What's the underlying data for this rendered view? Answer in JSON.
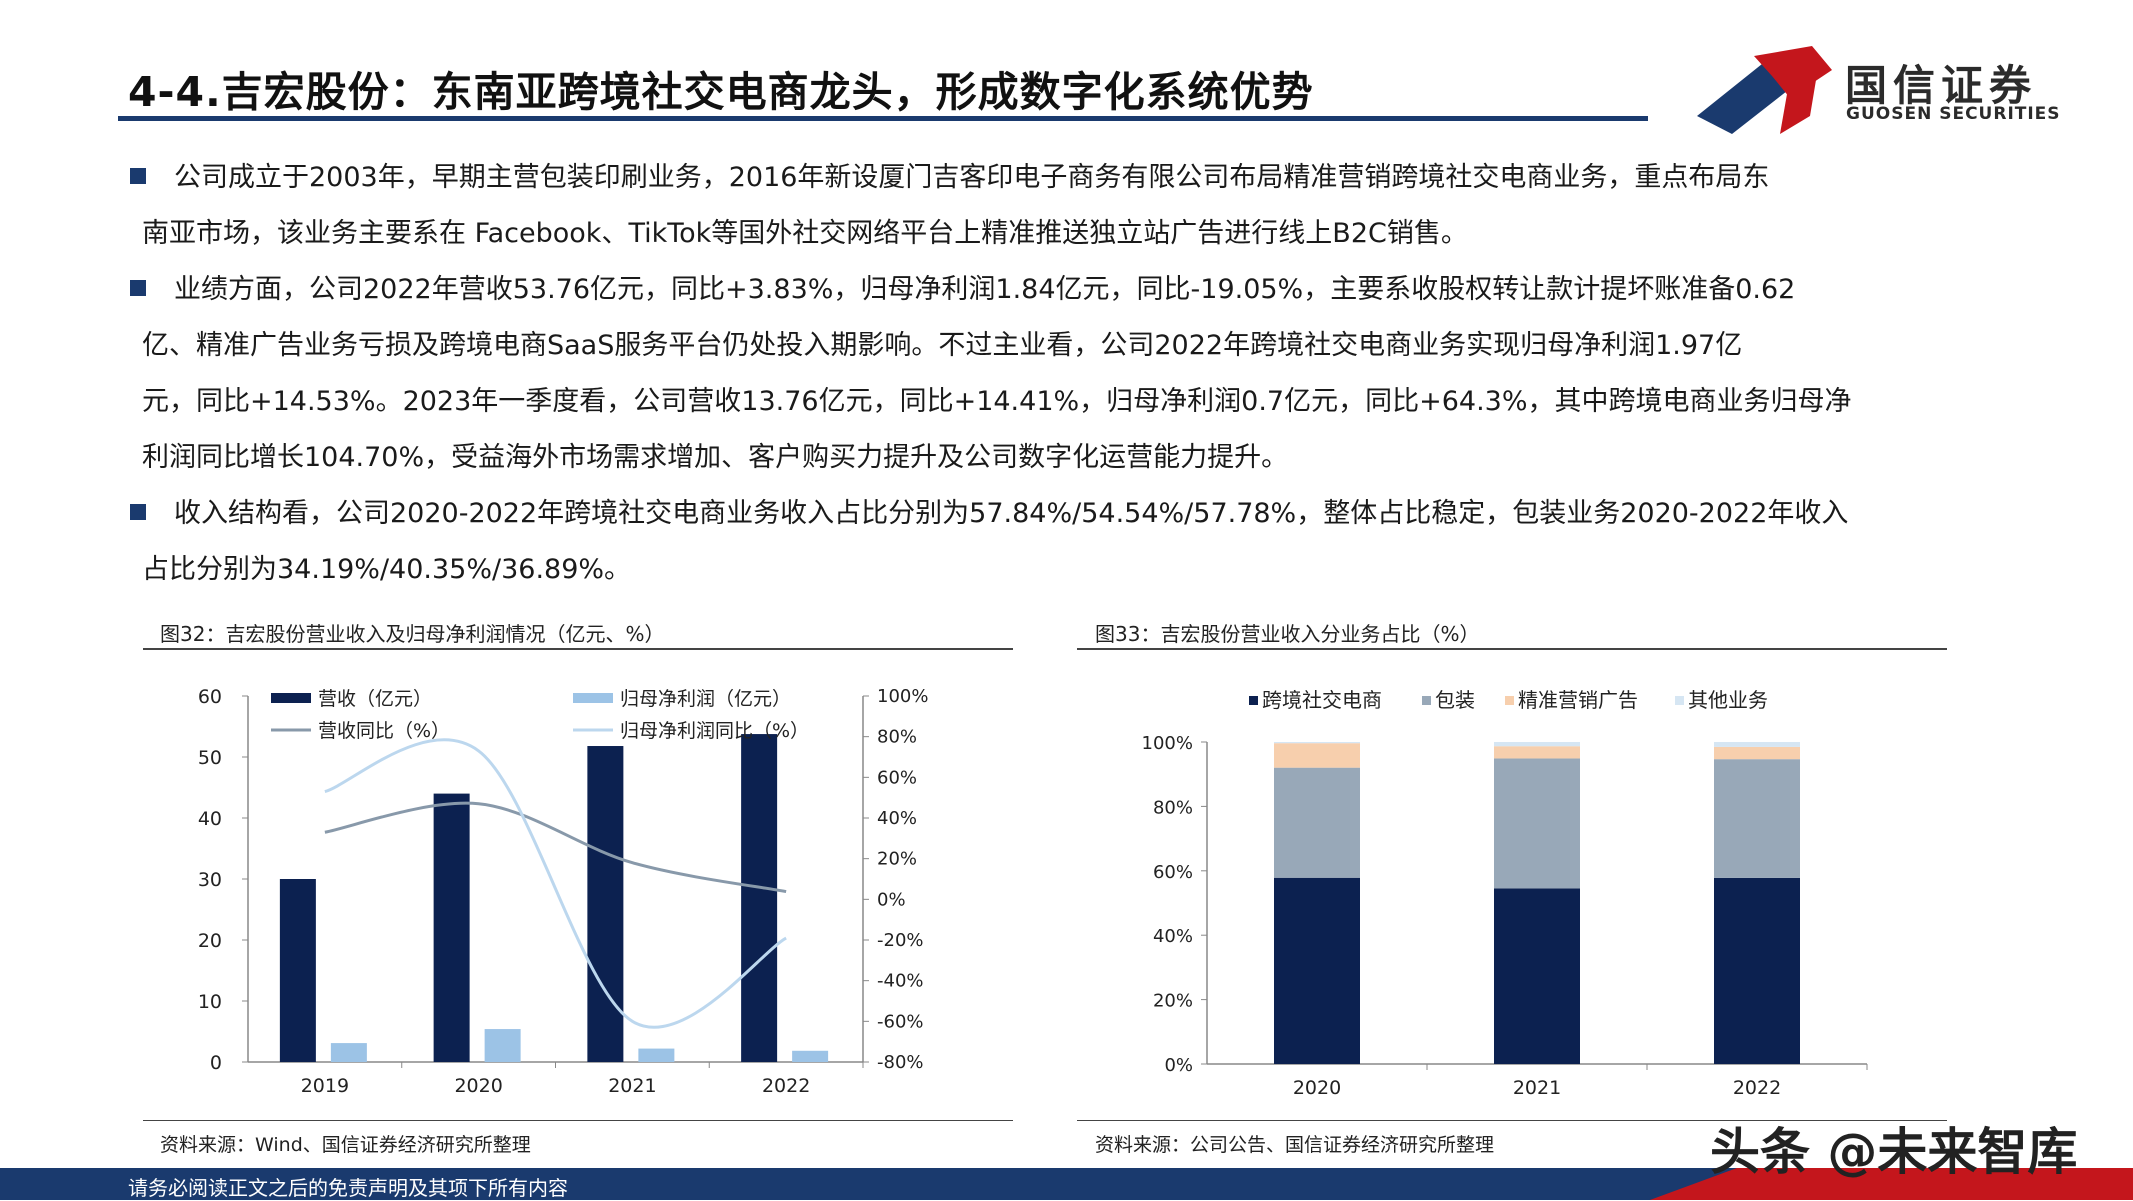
{
  "header": {
    "title": "4-4.吉宏股份：东南亚跨境社交电商龙头，形成数字化系统优势",
    "logo_cn": "国信证券",
    "logo_en": "GUOSEN SECURITIES"
  },
  "bullets": [
    {
      "lines": [
        "公司成立于2003年，早期主营包装印刷业务，2016年新设厦门吉客印电子商务有限公司布局精准营销跨境社交电商业务，重点布局东",
        "南亚市场，该业务主要系在 Facebook、TikTok等国外社交网络平台上精准推送独立站广告进行线上B2C销售。"
      ]
    },
    {
      "lines": [
        "业绩方面，公司2022年营收53.76亿元，同比+3.83%，归母净利润1.84亿元，同比-19.05%，主要系收股权转让款计提坏账准备0.62",
        "亿、精准广告业务亏损及跨境电商SaaS服务平台仍处投入期影响。不过主业看，公司2022年跨境社交电商业务实现归母净利润1.97亿",
        "元，同比+14.53%。2023年一季度看，公司营收13.76亿元，同比+14.41%，归母净利润0.7亿元，同比+64.3%，其中跨境电商业务归母净",
        "利润同比增长104.70%，受益海外市场需求增加、客户购买力提升及公司数字化运营能力提升。"
      ]
    },
    {
      "lines": [
        "收入结构看，公司2020-2022年跨境社交电商业务收入占比分别为57.84%/54.54%/57.78%，整体占比稳定，包装业务2020-2022年收入",
        "占比分别为34.19%/40.35%/36.89%。"
      ]
    }
  ],
  "figure1": {
    "caption": "图32：吉宏股份营业收入及归母净利润情况（亿元、%）",
    "source": "资料来源：Wind、国信证券经济研究所整理"
  },
  "figure2": {
    "caption": "图33：吉宏股份营业收入分业务占比（%）",
    "source": "资料来源：公司公告、国信证券经济研究所整理"
  },
  "footer": {
    "disclaimer": "请务必阅读正文之后的免责声明及其项下所有内容",
    "watermark": "头条 @未来智库"
  },
  "colors": {
    "navy": "#0c2150",
    "light_blue": "#9cc3e6",
    "grey_line": "#8899aa",
    "light_line": "#bcd7ee",
    "grey_bar": "#98a8b8",
    "peach": "#f7cfad",
    "pale_blue": "#d6e6f3",
    "brand_red": "#c4161c"
  },
  "chart_data": [
    {
      "type": "bar",
      "title": "图32：吉宏股份营业收入及归母净利润情况（亿元、%）",
      "categories": [
        "2019",
        "2020",
        "2021",
        "2022"
      ],
      "ylim_left": [
        0,
        60
      ],
      "yticks_left": [
        "60",
        "50",
        "40",
        "30",
        "20",
        "10",
        "0"
      ],
      "ylim_right": [
        -80,
        100
      ],
      "yticks_right": [
        "100%",
        "80%",
        "60%",
        "40%",
        "20%",
        "0%",
        "-20%",
        "-40%",
        "-60%",
        "-80%"
      ],
      "series": [
        {
          "name": "营收（亿元）",
          "kind": "bar",
          "axis": "left",
          "values": [
            30,
            44,
            51.8,
            53.76
          ]
        },
        {
          "name": "归母净利润（亿元）",
          "kind": "bar",
          "axis": "left",
          "values": [
            3.1,
            5.4,
            2.2,
            1.84
          ]
        },
        {
          "name": "营收同比（%）",
          "kind": "line",
          "axis": "right",
          "values": [
            33,
            47,
            18,
            3.83
          ]
        },
        {
          "name": "归母净利润同比（%）",
          "kind": "line",
          "axis": "right",
          "values": [
            53,
            73,
            -60,
            -19.05
          ]
        }
      ],
      "legend": [
        "营收（亿元）",
        "归母净利润（亿元）",
        "营收同比（%）",
        "归母净利润同比（%）"
      ]
    },
    {
      "type": "bar",
      "stacked": true,
      "title": "图33：吉宏股份营业收入分业务占比（%）",
      "categories": [
        "2020",
        "2021",
        "2022"
      ],
      "ylim": [
        0,
        100
      ],
      "yticks": [
        "100%",
        "80%",
        "60%",
        "40%",
        "20%",
        "0%"
      ],
      "series": [
        {
          "name": "跨境社交电商",
          "values": [
            57.84,
            54.54,
            57.78
          ]
        },
        {
          "name": "包装",
          "values": [
            34.19,
            40.35,
            36.89
          ]
        },
        {
          "name": "精准营销广告",
          "values": [
            7.6,
            3.8,
            3.8
          ]
        },
        {
          "name": "其他业务",
          "values": [
            0.37,
            1.31,
            1.53
          ]
        }
      ],
      "legend": [
        "跨境社交电商",
        "包装",
        "精准营销广告",
        "其他业务"
      ]
    }
  ]
}
